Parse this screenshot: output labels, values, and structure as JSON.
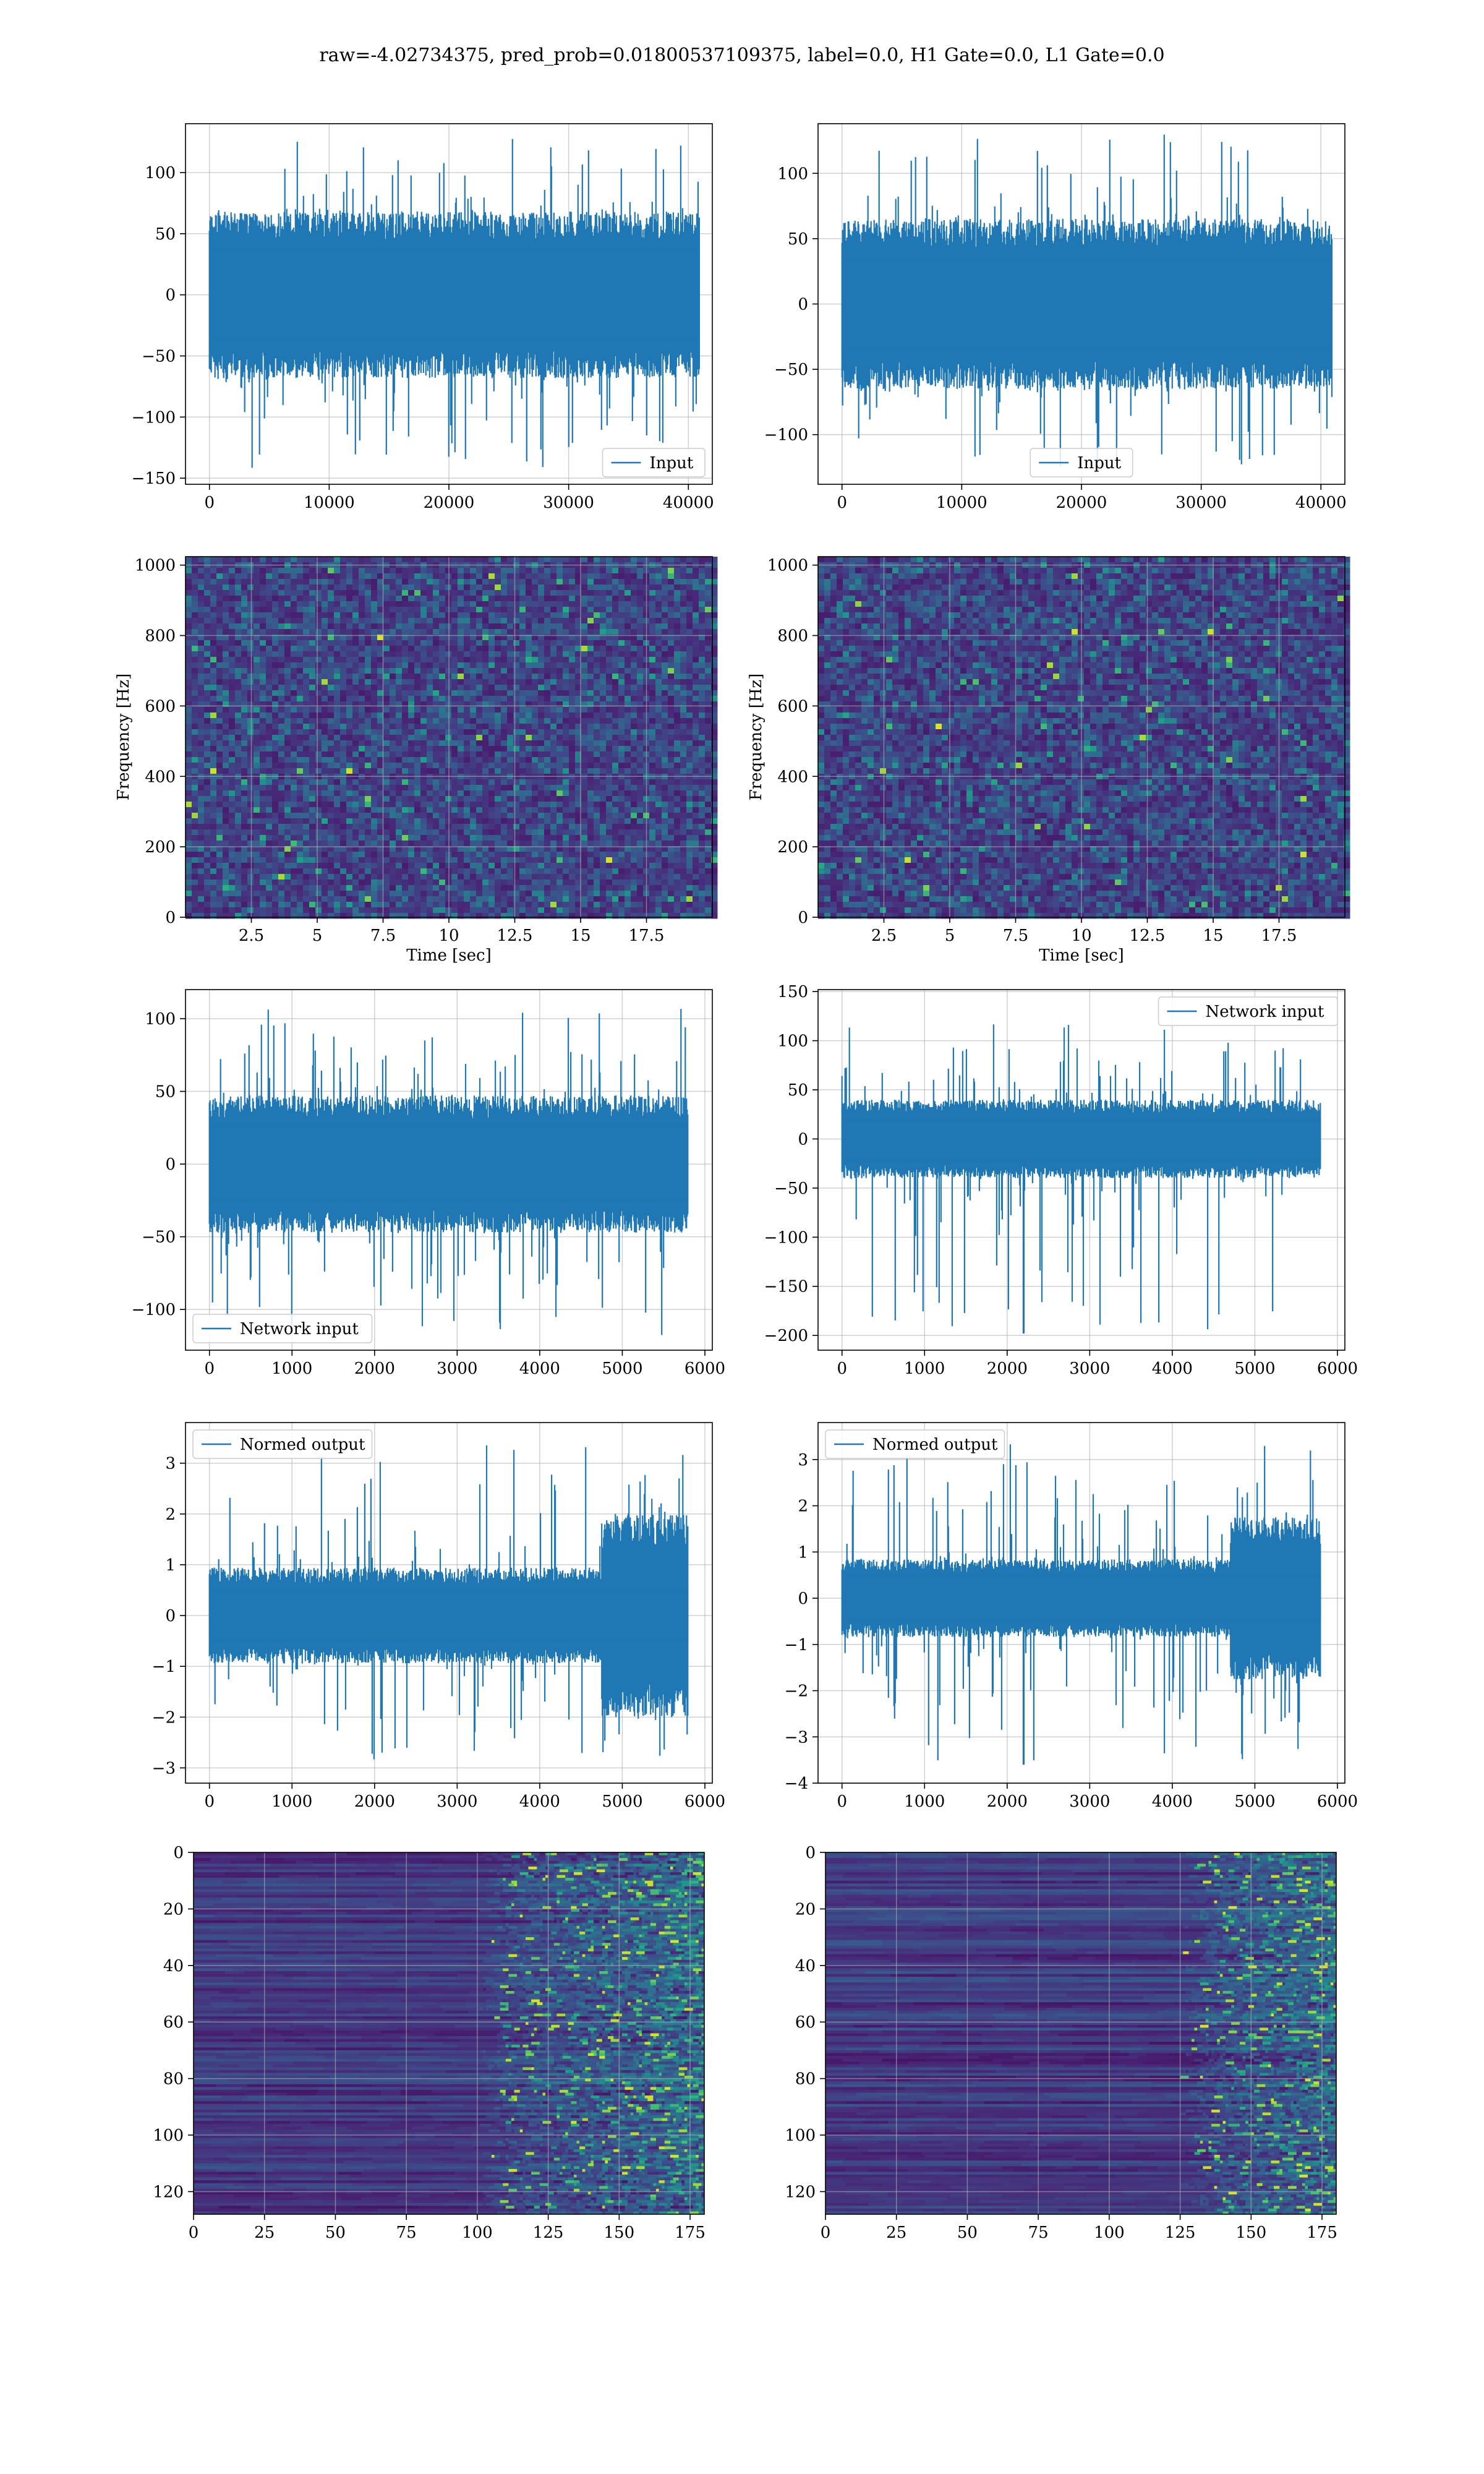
{
  "title": "raw=-4.02734375, pred_prob=0.01800537109375, label=0.0, H1 Gate=0.0, L1 Gate=0.0",
  "colors": {
    "line": "#1f77b4",
    "viridis_dark": "#440154",
    "viridis_mid": "#21918c",
    "viridis_light": "#fde725",
    "grid": "#b0b0b0"
  },
  "chart_data": [
    {
      "type": "line",
      "id": "input-left",
      "legend": "Input",
      "legend_loc": "lower-right",
      "xlim": [
        -2000,
        42000
      ],
      "ylim": [
        -155,
        140
      ],
      "xticks": [
        0,
        10000,
        20000,
        30000,
        40000
      ],
      "yticks": [
        -150,
        -100,
        -50,
        0,
        50,
        100
      ],
      "x_range": [
        0,
        40960
      ],
      "n_points": 40960,
      "envelope_typical": [
        -65,
        65
      ],
      "envelope_extreme": [
        -143,
        131
      ],
      "xlabel": "",
      "ylabel": ""
    },
    {
      "type": "line",
      "id": "input-right",
      "legend": "Input",
      "legend_loc": "lower-center",
      "xlim": [
        -2000,
        42000
      ],
      "ylim": [
        -138,
        138
      ],
      "xticks": [
        0,
        10000,
        20000,
        30000,
        40000
      ],
      "yticks": [
        -100,
        -50,
        0,
        50,
        100
      ],
      "x_range": [
        0,
        40960
      ],
      "n_points": 40960,
      "envelope_typical": [
        -62,
        62
      ],
      "envelope_extreme": [
        -128,
        130
      ],
      "xlabel": "",
      "ylabel": ""
    },
    {
      "type": "heatmap",
      "id": "spectrogram-left",
      "xlim": [
        0,
        20
      ],
      "ylim": [
        0,
        1024
      ],
      "xticks": [
        2.5,
        5.0,
        7.5,
        10.0,
        12.5,
        15.0,
        17.5
      ],
      "yticks": [
        0,
        200,
        400,
        600,
        800,
        1000
      ],
      "xlabel": "Time [sec]",
      "ylabel": "Frequency [Hz]",
      "colormap": "viridis"
    },
    {
      "type": "heatmap",
      "id": "spectrogram-right",
      "xlim": [
        0,
        20
      ],
      "ylim": [
        0,
        1024
      ],
      "xticks": [
        2.5,
        5.0,
        7.5,
        10.0,
        12.5,
        15.0,
        17.5
      ],
      "yticks": [
        0,
        200,
        400,
        600,
        800,
        1000
      ],
      "xlabel": "Time [sec]",
      "ylabel": "Frequency [Hz]",
      "colormap": "viridis"
    },
    {
      "type": "line",
      "id": "network-input-left",
      "legend": "Network input",
      "legend_loc": "lower-left",
      "xlim": [
        -290,
        6090
      ],
      "ylim": [
        -128,
        120
      ],
      "xticks": [
        0,
        1000,
        2000,
        3000,
        4000,
        5000,
        6000
      ],
      "yticks": [
        -100,
        -50,
        0,
        50,
        100
      ],
      "x_range": [
        0,
        5800
      ],
      "n_points": 5800,
      "envelope_typical": [
        -45,
        45
      ],
      "envelope_extreme": [
        -118,
        108
      ],
      "xlabel": "",
      "ylabel": ""
    },
    {
      "type": "line",
      "id": "network-input-right",
      "legend": "Network input",
      "legend_loc": "upper-right",
      "xlim": [
        -290,
        6090
      ],
      "ylim": [
        -215,
        152
      ],
      "xticks": [
        0,
        1000,
        2000,
        3000,
        4000,
        5000,
        6000
      ],
      "yticks": [
        -200,
        -150,
        -100,
        -50,
        0,
        50,
        100,
        150
      ],
      "x_range": [
        0,
        5800
      ],
      "n_points": 5800,
      "envelope_typical": [
        -38,
        38
      ],
      "envelope_extreme": [
        -198,
        118
      ],
      "spike": {
        "x": 2200,
        "y": -198
      },
      "xlabel": "",
      "ylabel": ""
    },
    {
      "type": "line",
      "id": "normed-output-left",
      "legend": "Normed output",
      "legend_loc": "upper-left",
      "xlim": [
        -290,
        6090
      ],
      "ylim": [
        -3.3,
        3.8
      ],
      "xticks": [
        0,
        1000,
        2000,
        3000,
        4000,
        5000,
        6000
      ],
      "yticks": [
        -3,
        -2,
        -1,
        0,
        1,
        2,
        3
      ],
      "x_range": [
        0,
        5800
      ],
      "n_points": 5800,
      "envelope_typical": [
        -0.9,
        0.9
      ],
      "envelope_extreme": [
        -3.0,
        3.5
      ],
      "burst_start": 4750,
      "xlabel": "",
      "ylabel": ""
    },
    {
      "type": "line",
      "id": "normed-output-right",
      "legend": "Normed output",
      "legend_loc": "upper-left",
      "xlim": [
        -290,
        6090
      ],
      "ylim": [
        -4.0,
        3.8
      ],
      "xticks": [
        0,
        1000,
        2000,
        3000,
        4000,
        5000,
        6000
      ],
      "yticks": [
        -4,
        -3,
        -2,
        -1,
        0,
        1,
        2,
        3
      ],
      "x_range": [
        0,
        5800
      ],
      "n_points": 5800,
      "envelope_typical": [
        -0.8,
        0.8
      ],
      "envelope_extreme": [
        -3.6,
        3.4
      ],
      "burst_start": 4700,
      "spike": {
        "x": 2200,
        "y": -3.6
      },
      "xlabel": "",
      "ylabel": ""
    },
    {
      "type": "heatmap",
      "id": "feature-map-left",
      "xlim": [
        0,
        180
      ],
      "ylim": [
        128,
        0
      ],
      "xticks": [
        0,
        25,
        50,
        75,
        100,
        125,
        150,
        175
      ],
      "yticks": [
        0,
        20,
        40,
        60,
        80,
        100,
        120
      ],
      "colormap": "viridis",
      "transition_x": 100,
      "xlabel": "",
      "ylabel": ""
    },
    {
      "type": "heatmap",
      "id": "feature-map-right",
      "xlim": [
        0,
        180
      ],
      "ylim": [
        128,
        0
      ],
      "xticks": [
        0,
        25,
        50,
        75,
        100,
        125,
        150,
        175
      ],
      "yticks": [
        0,
        20,
        40,
        60,
        80,
        100,
        120
      ],
      "colormap": "viridis",
      "transition_x": 125,
      "xlabel": "",
      "ylabel": ""
    }
  ]
}
